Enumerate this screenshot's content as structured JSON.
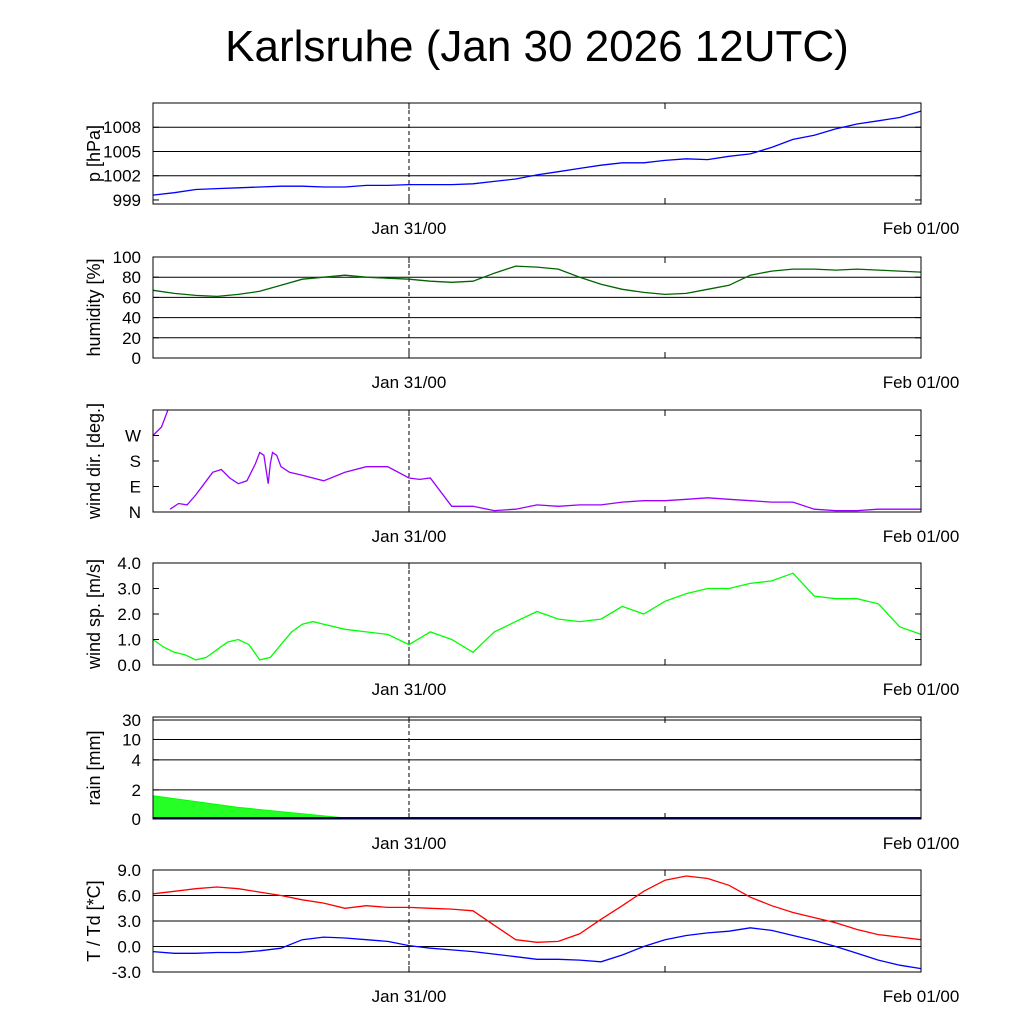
{
  "title": "Karlsruhe (Jan 30 2026 12UTC)",
  "chart_data": [
    {
      "type": "line",
      "ylabel": "p [hPa]",
      "yticks": [
        "999",
        "1002",
        "1005",
        "1008"
      ],
      "ylim": [
        998.5,
        1011
      ],
      "gridlines": [
        1002,
        1005,
        1008
      ],
      "xticks": [
        "Jan 31/00",
        "Feb 01/00"
      ],
      "series": [
        {
          "color": "#0000ff",
          "x": [
            0,
            1,
            2,
            3,
            4,
            5,
            6,
            7,
            8,
            9,
            10,
            11,
            12,
            13,
            14,
            15,
            16,
            17,
            18,
            19,
            20,
            21,
            22,
            23,
            24,
            25,
            26,
            27,
            28,
            29,
            30,
            31,
            32,
            33,
            34,
            35,
            36
          ],
          "y": [
            999.6,
            999.9,
            1000.3,
            1000.4,
            1000.5,
            1000.6,
            1000.7,
            1000.7,
            1000.6,
            1000.6,
            1000.8,
            1000.8,
            1000.9,
            1000.9,
            1000.9,
            1001.0,
            1001.3,
            1001.6,
            1002.1,
            1002.5,
            1002.9,
            1003.3,
            1003.6,
            1003.6,
            1003.9,
            1004.1,
            1004.0,
            1004.4,
            1004.7,
            1005.5,
            1006.5,
            1007.0,
            1007.8,
            1008.4,
            1008.8,
            1009.2,
            1010.0
          ]
        }
      ]
    },
    {
      "type": "line",
      "ylabel": "humidity [%]",
      "yticks": [
        "0",
        "20",
        "40",
        "60",
        "80",
        "100"
      ],
      "ylim": [
        0,
        100
      ],
      "gridlines": [
        20,
        40,
        60,
        80
      ],
      "xticks": [
        "Jan 31/00",
        "Feb 01/00"
      ],
      "series": [
        {
          "color": "#006400",
          "x": [
            0,
            1,
            2,
            3,
            4,
            5,
            6,
            7,
            8,
            9,
            10,
            11,
            12,
            13,
            14,
            15,
            16,
            17,
            18,
            19,
            20,
            21,
            22,
            23,
            24,
            25,
            26,
            27,
            28,
            29,
            30,
            31,
            32,
            33,
            34,
            35,
            36
          ],
          "y": [
            67,
            64,
            62,
            61,
            63,
            66,
            72,
            78,
            80,
            82,
            80,
            79,
            78,
            76,
            75,
            76,
            84,
            91,
            90,
            88,
            80,
            73,
            68,
            65,
            63,
            64,
            68,
            72,
            82,
            86,
            88,
            88,
            87,
            88,
            87,
            86,
            85
          ]
        }
      ]
    },
    {
      "type": "line",
      "ylabel": "wind dir. [deg.]",
      "yticks": [
        "N",
        "E",
        "S",
        "W"
      ],
      "ylim": [
        0,
        360
      ],
      "gridlines": [],
      "xticks": [
        "Jan 31/00",
        "Feb 01/00"
      ],
      "series": [
        {
          "color": "#9900ff",
          "x": [
            0,
            0.4,
            0.7
          ],
          "y": [
            270,
            300,
            360
          ]
        },
        {
          "color": "#9900ff",
          "x": [
            0.8,
            1.2,
            1.6,
            2.0,
            2.4,
            2.8,
            3.2,
            3.6,
            4.0,
            4.4,
            4.8,
            5.0,
            5.2,
            5.4,
            5.5,
            5.6,
            5.8,
            6.0,
            6.4,
            7.0,
            8.0,
            9.0,
            10.0,
            11.0,
            12.0,
            12.5,
            13.0,
            14.0,
            14.5,
            15.0,
            16.0,
            17.0,
            18.0,
            19.0,
            20.0,
            21.0,
            22.0,
            23.0,
            24.0,
            25.0,
            26.0,
            27.0,
            28.0,
            29.0,
            30.0,
            31.0,
            32.0,
            33.0,
            34.0,
            35.0,
            36.0
          ],
          "y": [
            10,
            30,
            25,
            60,
            100,
            140,
            150,
            120,
            100,
            110,
            170,
            210,
            200,
            100,
            170,
            210,
            200,
            160,
            140,
            130,
            110,
            140,
            160,
            160,
            120,
            115,
            120,
            20,
            20,
            20,
            5,
            10,
            25,
            20,
            25,
            25,
            35,
            40,
            40,
            45,
            50,
            45,
            40,
            35,
            35,
            10,
            5,
            5,
            10,
            10,
            10
          ]
        }
      ]
    },
    {
      "type": "line",
      "ylabel": "wind sp. [m/s]",
      "yticks": [
        "0.0",
        "1.0",
        "2.0",
        "3.0",
        "4.0"
      ],
      "ylim": [
        0,
        4
      ],
      "gridlines": [],
      "xticks": [
        "Jan 31/00",
        "Feb 01/00"
      ],
      "series": [
        {
          "color": "#00ff00",
          "x": [
            0,
            0.5,
            1,
            1.5,
            2,
            2.5,
            3,
            3.5,
            4,
            4.5,
            5,
            5.5,
            6,
            6.5,
            7,
            7.5,
            8,
            9,
            10,
            11,
            12,
            13,
            14,
            15,
            16,
            17,
            18,
            19,
            20,
            21,
            22,
            23,
            24,
            25,
            26,
            27,
            28,
            29,
            30,
            31,
            32,
            33,
            34,
            35,
            36
          ],
          "y": [
            1.0,
            0.7,
            0.5,
            0.4,
            0.2,
            0.3,
            0.6,
            0.9,
            1.0,
            0.8,
            0.2,
            0.3,
            0.8,
            1.3,
            1.6,
            1.7,
            1.6,
            1.4,
            1.3,
            1.2,
            0.8,
            1.3,
            1.0,
            0.5,
            1.3,
            1.7,
            2.1,
            1.8,
            1.7,
            1.8,
            2.3,
            2.0,
            2.5,
            2.8,
            3.0,
            3.0,
            3.2,
            3.3,
            3.6,
            2.7,
            2.6,
            2.6,
            2.4,
            1.5,
            1.2
          ]
        }
      ]
    },
    {
      "type": "area",
      "ylabel": "rain [mm]",
      "yticks": [
        "0",
        "2",
        "4",
        "10",
        "30"
      ],
      "ylim": [
        0,
        30
      ],
      "scale": "nonlinear",
      "gridlines": [
        2,
        4,
        10,
        30
      ],
      "xticks": [
        "Jan 31/00",
        "Feb 01/00"
      ],
      "series": [
        {
          "color": "#00ff00",
          "x": [
            0,
            4.0,
            9.5,
            36
          ],
          "y": [
            1.6,
            0.8,
            0,
            0
          ]
        }
      ]
    },
    {
      "type": "line",
      "ylabel": "T / Td [*C]",
      "yticks": [
        "-3.0",
        "0.0",
        "3.0",
        "6.0",
        "9.0"
      ],
      "ylim": [
        -3,
        9
      ],
      "gridlines": [
        0,
        3,
        6
      ],
      "xticks": [
        "Jan 31/00",
        "Feb 01/00"
      ],
      "series": [
        {
          "color": "#ff0000",
          "x": [
            0,
            1,
            2,
            3,
            4,
            5,
            6,
            7,
            8,
            9,
            10,
            11,
            12,
            13,
            14,
            15,
            16,
            17,
            18,
            19,
            20,
            21,
            22,
            23,
            24,
            25,
            26,
            27,
            28,
            29,
            30,
            31,
            32,
            33,
            34,
            35,
            36
          ],
          "y": [
            6.2,
            6.5,
            6.8,
            7.0,
            6.8,
            6.4,
            6.0,
            5.5,
            5.1,
            4.5,
            4.8,
            4.6,
            4.6,
            4.5,
            4.4,
            4.2,
            2.5,
            0.8,
            0.5,
            0.6,
            1.5,
            3.2,
            4.8,
            6.5,
            7.8,
            8.3,
            8.0,
            7.2,
            5.8,
            4.8,
            4.0,
            3.4,
            2.8,
            2.0,
            1.4,
            1.1,
            0.8
          ]
        },
        {
          "color": "#0000ff",
          "x": [
            0,
            1,
            2,
            3,
            4,
            5,
            6,
            7,
            8,
            9,
            10,
            11,
            12,
            13,
            14,
            15,
            16,
            17,
            18,
            19,
            20,
            21,
            22,
            23,
            24,
            25,
            26,
            27,
            28,
            29,
            30,
            31,
            32,
            33,
            34,
            35,
            36
          ],
          "y": [
            -0.6,
            -0.8,
            -0.8,
            -0.7,
            -0.7,
            -0.5,
            -0.2,
            0.8,
            1.1,
            1.0,
            0.8,
            0.6,
            0.1,
            -0.2,
            -0.4,
            -0.6,
            -0.9,
            -1.2,
            -1.5,
            -1.5,
            -1.6,
            -1.8,
            -1.0,
            0.0,
            0.8,
            1.3,
            1.6,
            1.8,
            2.2,
            1.9,
            1.3,
            0.7,
            0.0,
            -0.8,
            -1.6,
            -2.2,
            -2.6
          ]
        }
      ]
    }
  ]
}
